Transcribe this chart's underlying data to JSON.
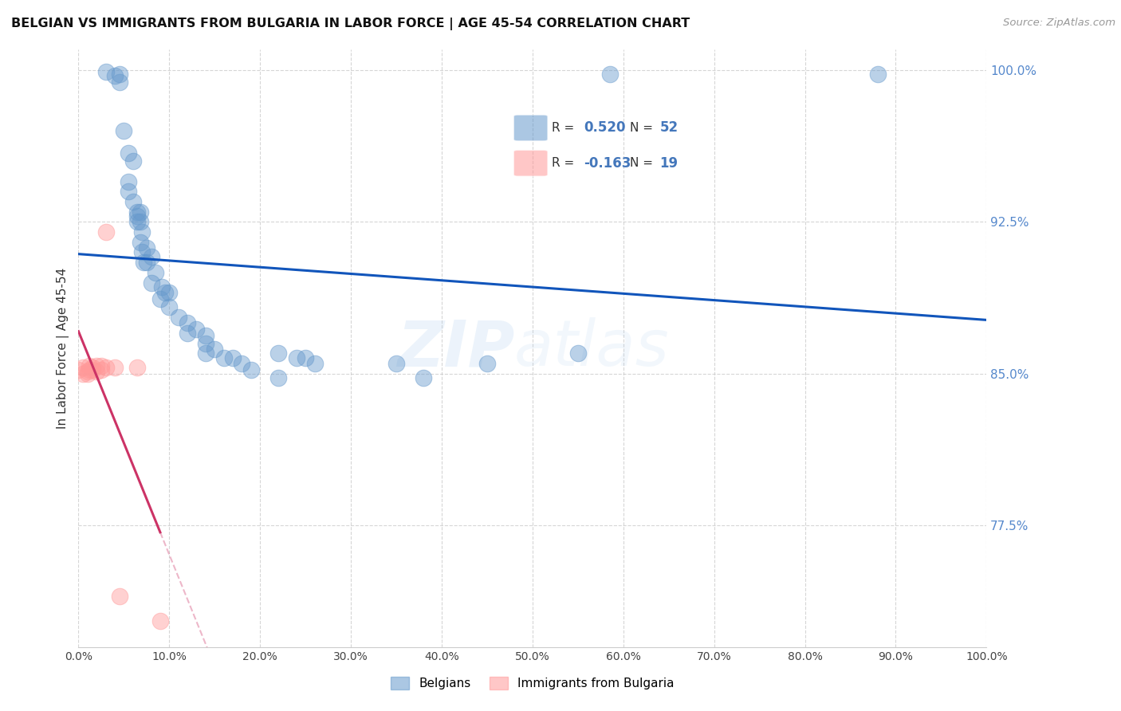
{
  "title": "BELGIAN VS IMMIGRANTS FROM BULGARIA IN LABOR FORCE | AGE 45-54 CORRELATION CHART",
  "source": "Source: ZipAtlas.com",
  "ylabel": "In Labor Force | Age 45-54",
  "xlim": [
    0.0,
    1.0
  ],
  "ylim": [
    0.715,
    1.01
  ],
  "yticks": [
    0.775,
    0.85,
    0.925,
    1.0
  ],
  "ytick_labels": [
    "77.5%",
    "85.0%",
    "92.5%",
    "100.0%"
  ],
  "xticks": [
    0.0,
    0.1,
    0.2,
    0.3,
    0.4,
    0.5,
    0.6,
    0.7,
    0.8,
    0.9,
    1.0
  ],
  "xtick_labels": [
    "0.0%",
    "10.0%",
    "20.0%",
    "30.0%",
    "40.0%",
    "50.0%",
    "60.0%",
    "70.0%",
    "80.0%",
    "90.0%",
    "100.0%"
  ],
  "blue_color": "#6699CC",
  "pink_color": "#FF9999",
  "trend_blue": "#1155BB",
  "trend_pink": "#CC3366",
  "background": "#FFFFFF",
  "legend_R_blue": "0.520",
  "legend_N_blue": "52",
  "legend_R_pink": "-0.163",
  "legend_N_pink": "19",
  "watermark_zip": "ZIP",
  "watermark_atlas": "atlas",
  "belgians_x": [
    0.03,
    0.04,
    0.045,
    0.045,
    0.05,
    0.055,
    0.055,
    0.055,
    0.06,
    0.06,
    0.065,
    0.065,
    0.065,
    0.068,
    0.068,
    0.068,
    0.07,
    0.07,
    0.072,
    0.075,
    0.075,
    0.08,
    0.08,
    0.085,
    0.09,
    0.092,
    0.095,
    0.1,
    0.1,
    0.11,
    0.12,
    0.12,
    0.13,
    0.14,
    0.14,
    0.14,
    0.15,
    0.16,
    0.17,
    0.18,
    0.19,
    0.22,
    0.22,
    0.24,
    0.25,
    0.26,
    0.35,
    0.38,
    0.45,
    0.55,
    0.585,
    0.88
  ],
  "belgians_y": [
    0.999,
    0.997,
    0.998,
    0.994,
    0.97,
    0.959,
    0.945,
    0.94,
    0.955,
    0.935,
    0.93,
    0.925,
    0.928,
    0.93,
    0.925,
    0.915,
    0.92,
    0.91,
    0.905,
    0.912,
    0.905,
    0.908,
    0.895,
    0.9,
    0.887,
    0.893,
    0.89,
    0.89,
    0.883,
    0.878,
    0.875,
    0.87,
    0.872,
    0.869,
    0.865,
    0.86,
    0.862,
    0.858,
    0.858,
    0.855,
    0.852,
    0.86,
    0.848,
    0.858,
    0.858,
    0.855,
    0.855,
    0.848,
    0.855,
    0.86,
    0.998,
    0.998
  ],
  "bulgaria_x": [
    0.0,
    0.005,
    0.005,
    0.01,
    0.01,
    0.012,
    0.012,
    0.015,
    0.015,
    0.02,
    0.02,
    0.025,
    0.025,
    0.03,
    0.03,
    0.04,
    0.045,
    0.065,
    0.09
  ],
  "bulgaria_y": [
    0.852,
    0.853,
    0.85,
    0.851,
    0.85,
    0.852,
    0.854,
    0.852,
    0.853,
    0.851,
    0.854,
    0.852,
    0.854,
    0.92,
    0.853,
    0.853,
    0.74,
    0.853,
    0.728
  ]
}
